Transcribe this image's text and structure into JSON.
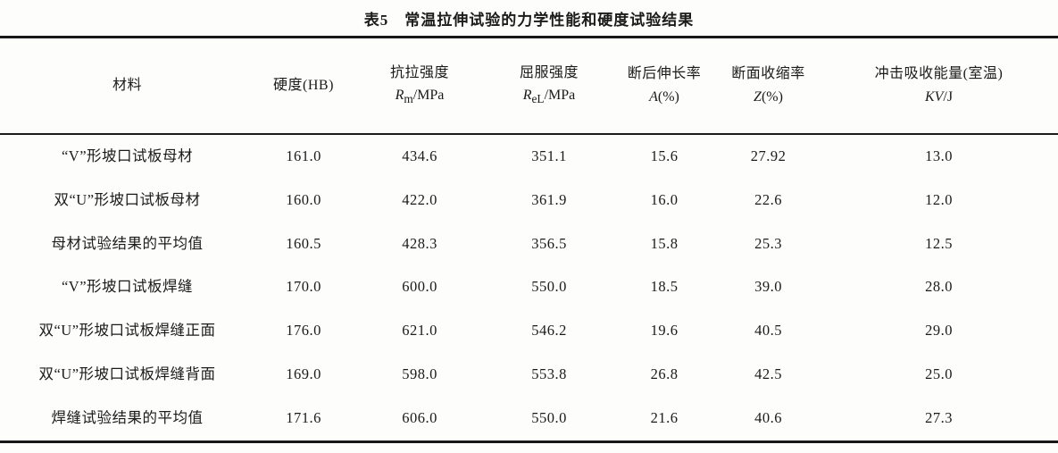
{
  "title": "表5　常温拉伸试验的力学性能和硬度试验结果",
  "table": {
    "columns": [
      {
        "label": "材料"
      },
      {
        "label": "硬度(HB)"
      },
      {
        "label": "抗拉强度",
        "sym": "R",
        "sub": "m",
        "unit": "/MPa"
      },
      {
        "label": "屈服强度",
        "sym": "R",
        "sub": "eL",
        "unit": "/MPa"
      },
      {
        "label": "断后伸长率",
        "sym": "A",
        "unit": "(%)"
      },
      {
        "label": "断面收缩率",
        "sym": "Z",
        "unit": "(%)"
      },
      {
        "label": "冲击吸收能量(室温)",
        "sym": "KV",
        "unit": "/J"
      }
    ],
    "rows": [
      {
        "material": "“V”形坡口试板母材",
        "hb": "161.0",
        "rm": "434.6",
        "rel": "351.1",
        "a": "15.6",
        "z": "27.92",
        "kv": "13.0"
      },
      {
        "material": "双“U”形坡口试板母材",
        "hb": "160.0",
        "rm": "422.0",
        "rel": "361.9",
        "a": "16.0",
        "z": "22.6",
        "kv": "12.0"
      },
      {
        "material": "母材试验结果的平均值",
        "hb": "160.5",
        "rm": "428.3",
        "rel": "356.5",
        "a": "15.8",
        "z": "25.3",
        "kv": "12.5"
      },
      {
        "material": "“V”形坡口试板焊缝",
        "hb": "170.0",
        "rm": "600.0",
        "rel": "550.0",
        "a": "18.5",
        "z": "39.0",
        "kv": "28.0"
      },
      {
        "material": "双“U”形坡口试板焊缝正面",
        "hb": "176.0",
        "rm": "621.0",
        "rel": "546.2",
        "a": "19.6",
        "z": "40.5",
        "kv": "29.0"
      },
      {
        "material": "双“U”形坡口试板焊缝背面",
        "hb": "169.0",
        "rm": "598.0",
        "rel": "553.8",
        "a": "26.8",
        "z": "42.5",
        "kv": "25.0"
      },
      {
        "material": "焊缝试验结果的平均值",
        "hb": "171.6",
        "rm": "606.0",
        "rel": "550.0",
        "a": "21.6",
        "z": "40.6",
        "kv": "27.3"
      }
    ]
  }
}
